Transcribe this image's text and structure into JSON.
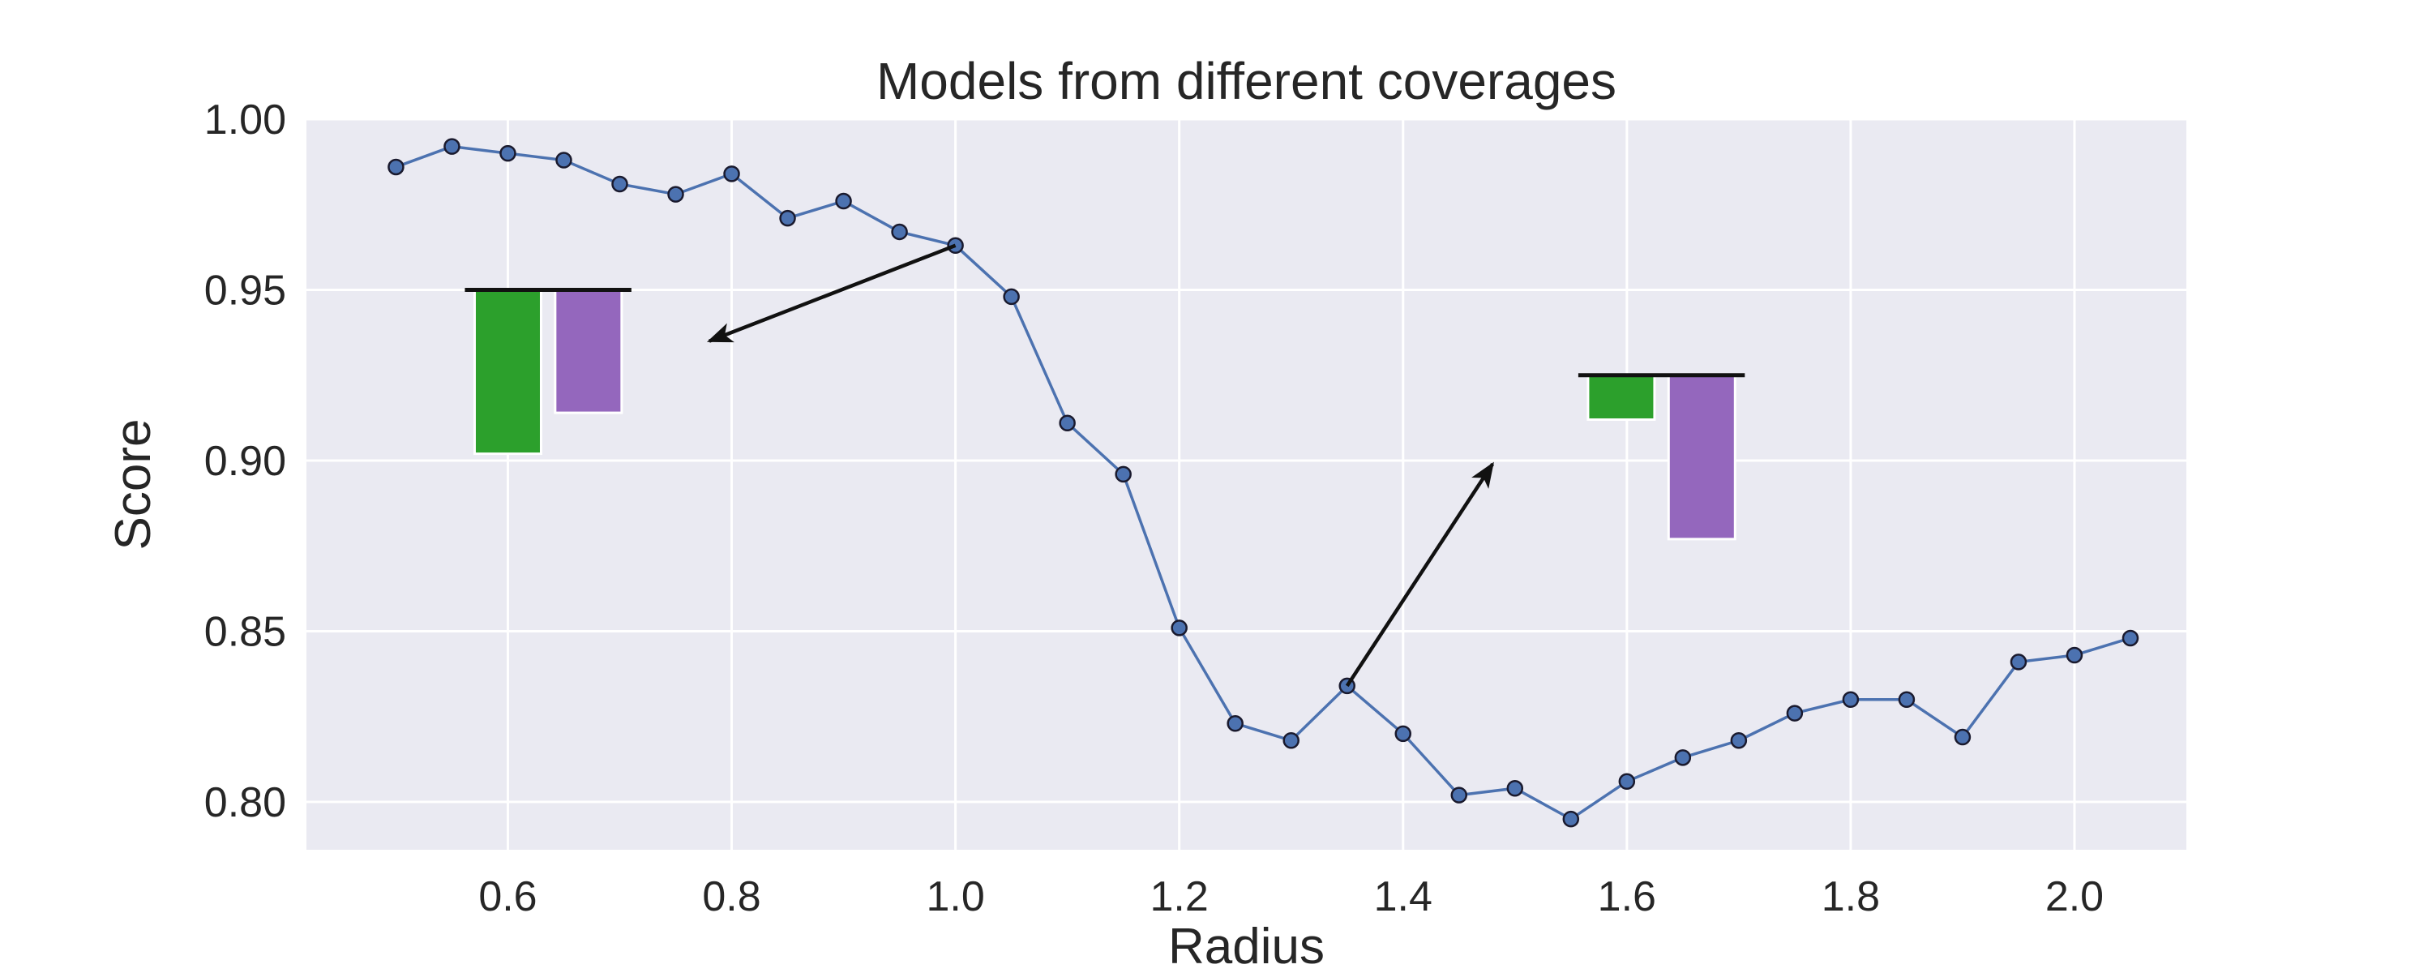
{
  "chart_data": {
    "type": "line",
    "title": "Models from different coverages",
    "xlabel": "Radius",
    "ylabel": "Score",
    "xlim": [
      0.42,
      2.1
    ],
    "ylim": [
      0.786,
      1.0
    ],
    "xticks": [
      0.6,
      0.8,
      1.0,
      1.2,
      1.4,
      1.6,
      1.8,
      2.0
    ],
    "xtick_labels": [
      "0.6",
      "0.8",
      "1.0",
      "1.2",
      "1.4",
      "1.6",
      "1.8",
      "2.0"
    ],
    "yticks": [
      0.8,
      0.85,
      0.9,
      0.95,
      1.0
    ],
    "ytick_labels": [
      "0.80",
      "0.85",
      "0.90",
      "0.95",
      "1.00"
    ],
    "grid": true,
    "series": [
      {
        "color": "#4c72b0",
        "marker_color": "#4c72b0",
        "x": [
          0.5,
          0.55,
          0.6,
          0.65,
          0.7,
          0.75,
          0.8,
          0.85,
          0.9,
          0.95,
          1.0,
          1.05,
          1.1,
          1.15,
          1.2,
          1.25,
          1.3,
          1.35,
          1.4,
          1.45,
          1.5,
          1.55,
          1.6,
          1.65,
          1.7,
          1.75,
          1.8,
          1.85,
          1.9,
          1.95,
          2.0,
          2.05
        ],
        "y": [
          0.986,
          0.992,
          0.99,
          0.988,
          0.981,
          0.978,
          0.984,
          0.971,
          0.976,
          0.967,
          0.963,
          0.948,
          0.911,
          0.896,
          0.851,
          0.823,
          0.818,
          0.834,
          0.82,
          0.802,
          0.804,
          0.795,
          0.806,
          0.813,
          0.818,
          0.826,
          0.83,
          0.83,
          0.819,
          0.841,
          0.843,
          0.848
        ]
      }
    ],
    "insets": [
      {
        "baseline": 0.95,
        "bars": [
          {
            "x": 0.6,
            "value": 0.902,
            "color": "#2ca02c"
          },
          {
            "x": 0.672,
            "value": 0.914,
            "color": "#9467bd"
          }
        ],
        "arrow": {
          "from": [
            1.0,
            0.963
          ],
          "to": [
            0.78,
            0.935
          ]
        }
      },
      {
        "baseline": 0.925,
        "bars": [
          {
            "x": 1.595,
            "value": 0.912,
            "color": "#2ca02c"
          },
          {
            "x": 1.667,
            "value": 0.877,
            "color": "#9467bd"
          }
        ],
        "arrow": {
          "from": [
            1.35,
            0.834
          ],
          "to": [
            1.48,
            0.899
          ]
        }
      }
    ]
  }
}
